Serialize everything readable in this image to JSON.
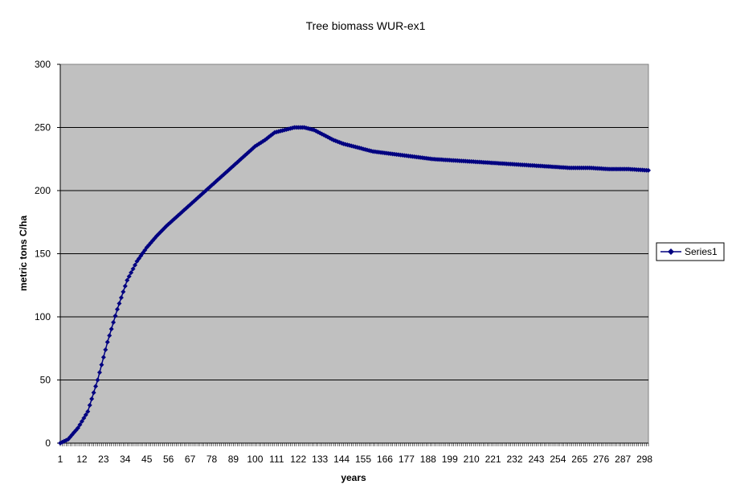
{
  "chart_data": {
    "type": "line",
    "title": "Tree biomass WUR-ex1",
    "xlabel": "years",
    "ylabel": "metric tons C/ha",
    "xlim": [
      1,
      300
    ],
    "ylim": [
      0,
      300
    ],
    "y_ticks": [
      0,
      50,
      100,
      150,
      200,
      250,
      300
    ],
    "x_tick_labels": [
      "1",
      "12",
      "23",
      "34",
      "45",
      "56",
      "67",
      "78",
      "89",
      "100",
      "111",
      "122",
      "133",
      "144",
      "155",
      "166",
      "177",
      "188",
      "199",
      "210",
      "221",
      "232",
      "243",
      "254",
      "265",
      "276",
      "287",
      "298"
    ],
    "grid": "horizontal",
    "legend_position": "right",
    "plot_background": "#C0C0C0",
    "series_color": "#000080",
    "marker": "diamond",
    "series": [
      {
        "name": "Series1",
        "x": [
          1,
          5,
          10,
          15,
          20,
          25,
          30,
          35,
          40,
          45,
          50,
          55,
          60,
          65,
          70,
          75,
          80,
          85,
          90,
          95,
          100,
          105,
          110,
          115,
          120,
          125,
          130,
          135,
          140,
          145,
          150,
          160,
          170,
          180,
          190,
          200,
          210,
          220,
          230,
          240,
          250,
          260,
          270,
          280,
          290,
          300
        ],
        "values": [
          0,
          3,
          12,
          25,
          50,
          80,
          106,
          129,
          144,
          155,
          164,
          172,
          179,
          186,
          193,
          200,
          207,
          214,
          221,
          228,
          235,
          240,
          246,
          248,
          250,
          250,
          248,
          244,
          240,
          237,
          235,
          231,
          229,
          227,
          225,
          224,
          223,
          222,
          221,
          220,
          219,
          218,
          218,
          217,
          217,
          216
        ]
      }
    ]
  }
}
